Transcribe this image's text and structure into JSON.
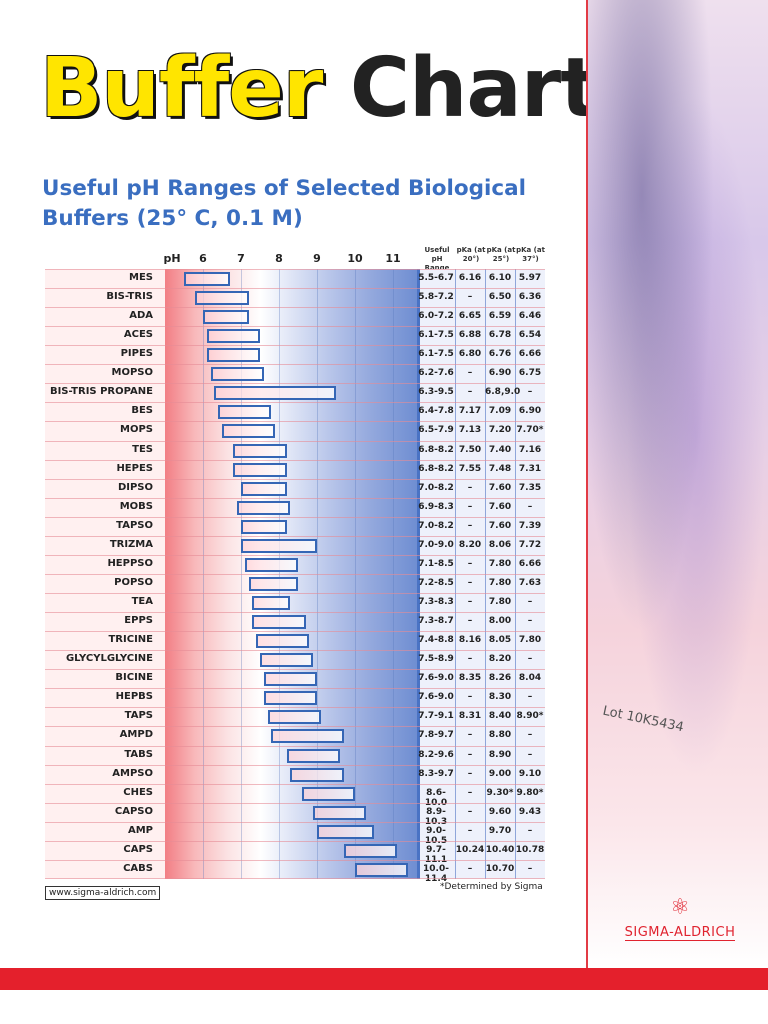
{
  "title": {
    "word1": "Buffer",
    "word2": "Chart"
  },
  "subtitle": "Useful pH Ranges of Selected Biological Buffers (25° C, 0.1 M)",
  "axis": {
    "label": "pH",
    "ticks": [
      6,
      7,
      8,
      9,
      10,
      11
    ],
    "min": 5,
    "max": 11.63
  },
  "columns": {
    "range": "Useful pH Range",
    "pka20": "pKa (at 20°)",
    "pka25": "pKa (at 25°)",
    "pka37": "pKa (at 37°)"
  },
  "buffers": [
    {
      "name": "MES",
      "range": "5.5-6.7",
      "lo": 5.5,
      "hi": 6.7,
      "p20": "6.16",
      "p25": "6.10",
      "p37": "5.97"
    },
    {
      "name": "BIS-TRIS",
      "range": "5.8-7.2",
      "lo": 5.8,
      "hi": 7.2,
      "p20": "–",
      "p25": "6.50",
      "p37": "6.36"
    },
    {
      "name": "ADA",
      "range": "6.0-7.2",
      "lo": 6.0,
      "hi": 7.2,
      "p20": "6.65",
      "p25": "6.59",
      "p37": "6.46"
    },
    {
      "name": "ACES",
      "range": "6.1-7.5",
      "lo": 6.1,
      "hi": 7.5,
      "p20": "6.88",
      "p25": "6.78",
      "p37": "6.54"
    },
    {
      "name": "PIPES",
      "range": "6.1-7.5",
      "lo": 6.1,
      "hi": 7.5,
      "p20": "6.80",
      "p25": "6.76",
      "p37": "6.66"
    },
    {
      "name": "MOPSO",
      "range": "6.2-7.6",
      "lo": 6.2,
      "hi": 7.6,
      "p20": "–",
      "p25": "6.90",
      "p37": "6.75"
    },
    {
      "name": "BIS-TRIS PROPANE",
      "range": "6.3-9.5",
      "lo": 6.3,
      "hi": 9.5,
      "p20": "–",
      "p25": "6.8,9.0",
      "p37": "–"
    },
    {
      "name": "BES",
      "range": "6.4-7.8",
      "lo": 6.4,
      "hi": 7.8,
      "p20": "7.17",
      "p25": "7.09",
      "p37": "6.90"
    },
    {
      "name": "MOPS",
      "range": "6.5-7.9",
      "lo": 6.5,
      "hi": 7.9,
      "p20": "7.13",
      "p25": "7.20",
      "p37": "7.70*"
    },
    {
      "name": "TES",
      "range": "6.8-8.2",
      "lo": 6.8,
      "hi": 8.2,
      "p20": "7.50",
      "p25": "7.40",
      "p37": "7.16"
    },
    {
      "name": "HEPES",
      "range": "6.8-8.2",
      "lo": 6.8,
      "hi": 8.2,
      "p20": "7.55",
      "p25": "7.48",
      "p37": "7.31"
    },
    {
      "name": "DIPSO",
      "range": "7.0-8.2",
      "lo": 7.0,
      "hi": 8.2,
      "p20": "–",
      "p25": "7.60",
      "p37": "7.35"
    },
    {
      "name": "MOBS",
      "range": "6.9-8.3",
      "lo": 6.9,
      "hi": 8.3,
      "p20": "–",
      "p25": "7.60",
      "p37": "–"
    },
    {
      "name": "TAPSO",
      "range": "7.0-8.2",
      "lo": 7.0,
      "hi": 8.2,
      "p20": "–",
      "p25": "7.60",
      "p37": "7.39"
    },
    {
      "name": "TRIZMA",
      "range": "7.0-9.0",
      "lo": 7.0,
      "hi": 9.0,
      "p20": "8.20",
      "p25": "8.06",
      "p37": "7.72"
    },
    {
      "name": "HEPPSO",
      "range": "7.1-8.5",
      "lo": 7.1,
      "hi": 8.5,
      "p20": "–",
      "p25": "7.80",
      "p37": "6.66"
    },
    {
      "name": "POPSO",
      "range": "7.2-8.5",
      "lo": 7.2,
      "hi": 8.5,
      "p20": "–",
      "p25": "7.80",
      "p37": "7.63"
    },
    {
      "name": "TEA",
      "range": "7.3-8.3",
      "lo": 7.3,
      "hi": 8.3,
      "p20": "–",
      "p25": "7.80",
      "p37": "–"
    },
    {
      "name": "EPPS",
      "range": "7.3-8.7",
      "lo": 7.3,
      "hi": 8.7,
      "p20": "–",
      "p25": "8.00",
      "p37": "–"
    },
    {
      "name": "TRICINE",
      "range": "7.4-8.8",
      "lo": 7.4,
      "hi": 8.8,
      "p20": "8.16",
      "p25": "8.05",
      "p37": "7.80"
    },
    {
      "name": "GLYCYLGLYCINE",
      "range": "7.5-8.9",
      "lo": 7.5,
      "hi": 8.9,
      "p20": "–",
      "p25": "8.20",
      "p37": "–"
    },
    {
      "name": "BICINE",
      "range": "7.6-9.0",
      "lo": 7.6,
      "hi": 9.0,
      "p20": "8.35",
      "p25": "8.26",
      "p37": "8.04"
    },
    {
      "name": "HEPBS",
      "range": "7.6-9.0",
      "lo": 7.6,
      "hi": 9.0,
      "p20": "–",
      "p25": "8.30",
      "p37": "–"
    },
    {
      "name": "TAPS",
      "range": "7.7-9.1",
      "lo": 7.7,
      "hi": 9.1,
      "p20": "8.31",
      "p25": "8.40",
      "p37": "8.90*"
    },
    {
      "name": "AMPD",
      "range": "7.8-9.7",
      "lo": 7.8,
      "hi": 9.7,
      "p20": "–",
      "p25": "8.80",
      "p37": "–"
    },
    {
      "name": "TABS",
      "range": "8.2-9.6",
      "lo": 8.2,
      "hi": 9.6,
      "p20": "–",
      "p25": "8.90",
      "p37": "–"
    },
    {
      "name": "AMPSO",
      "range": "8.3-9.7",
      "lo": 8.3,
      "hi": 9.7,
      "p20": "–",
      "p25": "9.00",
      "p37": "9.10"
    },
    {
      "name": "CHES",
      "range": "8.6-10.0",
      "lo": 8.6,
      "hi": 10.0,
      "p20": "–",
      "p25": "9.30*",
      "p37": "9.80*"
    },
    {
      "name": "CAPSO",
      "range": "8.9-10.3",
      "lo": 8.9,
      "hi": 10.3,
      "p20": "–",
      "p25": "9.60",
      "p37": "9.43"
    },
    {
      "name": "AMP",
      "range": "9.0-10.5",
      "lo": 9.0,
      "hi": 10.5,
      "p20": "–",
      "p25": "9.70",
      "p37": "–"
    },
    {
      "name": "CAPS",
      "range": "9.7-11.1",
      "lo": 9.7,
      "hi": 11.1,
      "p20": "10.24",
      "p25": "10.40",
      "p37": "10.78"
    },
    {
      "name": "CABS",
      "range": "10.0-11.4",
      "lo": 10.0,
      "hi": 11.4,
      "p20": "–",
      "p25": "10.70",
      "p37": "–"
    }
  ],
  "footnote": "*Determined by Sigma",
  "url": "www.sigma-aldrich.com",
  "photo_label": "Lot 10K5434",
  "logo": "SIGMA-ALDRICH"
}
